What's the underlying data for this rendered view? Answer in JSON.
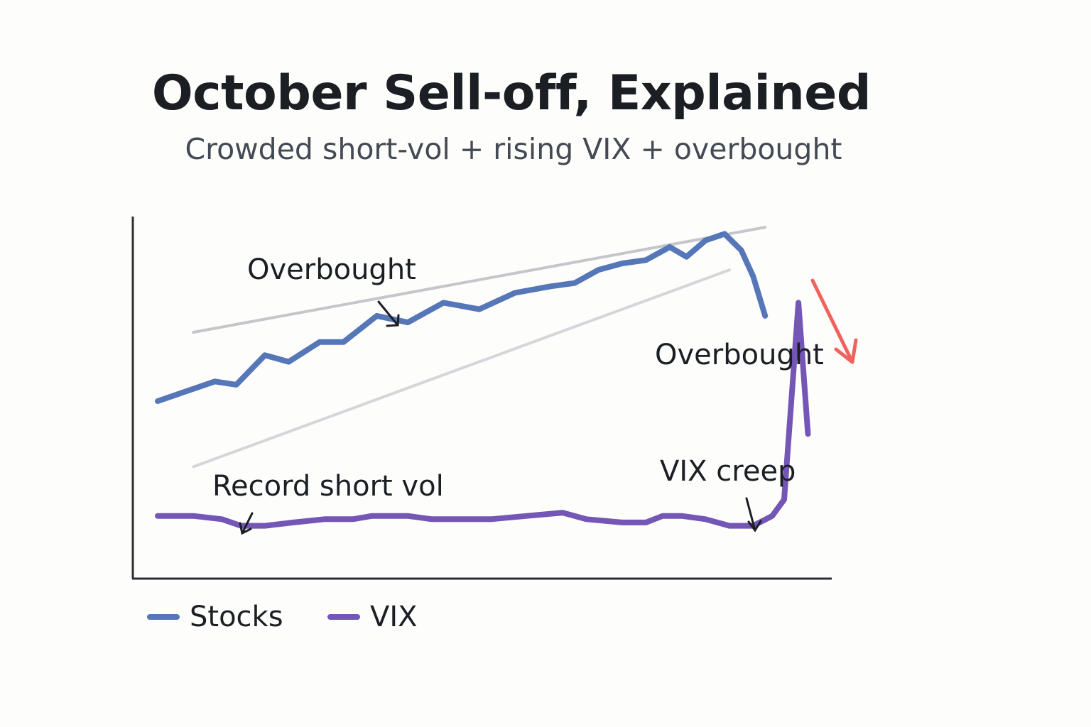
{
  "title": "October Sell-off, Explained",
  "subtitle": "Crowded short-vol + rising VIX + overbought",
  "chart_data": {
    "type": "line",
    "title": "October Sell-off, Explained",
    "subtitle": "Crowded short-vol + rising VIX + overbought",
    "xlabel": "",
    "ylabel": "",
    "x": [
      0,
      1,
      2,
      3,
      4,
      5,
      6,
      7,
      8,
      9,
      10,
      11,
      12,
      13,
      14,
      15,
      16,
      17,
      18,
      19,
      20,
      21,
      22,
      23,
      24,
      25,
      26,
      27,
      28
    ],
    "xlim": [
      0,
      28
    ],
    "ylim": [
      0,
      100
    ],
    "series": [
      {
        "name": "Stocks",
        "color": "#5577b8",
        "values": [
          50,
          53,
          56,
          55,
          64,
          62,
          68,
          68,
          76,
          74,
          80,
          78,
          83,
          85,
          86,
          90,
          92,
          93,
          97,
          94,
          99,
          101,
          96,
          88,
          76
        ],
        "x": [
          0,
          1.2,
          2.4,
          3.3,
          4.5,
          5.5,
          6.8,
          7.8,
          9.2,
          10.5,
          12,
          13.5,
          15,
          16.5,
          17.5,
          18.5,
          19.5,
          20.5,
          21.5,
          22.2,
          23,
          23.8,
          24.5,
          25,
          25.5
        ]
      },
      {
        "name": "VIX",
        "color": "#7356b5",
        "values": [
          15,
          15,
          14,
          12,
          12,
          13,
          14,
          14,
          15,
          15,
          14,
          14,
          14,
          15,
          16,
          14,
          13,
          13,
          15,
          15,
          14,
          12,
          12,
          15,
          20,
          50,
          80,
          40
        ],
        "x": [
          0,
          1.5,
          2.7,
          3.5,
          4.5,
          5.7,
          7,
          8.2,
          9,
          10.5,
          11.5,
          12.5,
          14,
          15.5,
          17,
          18,
          19.5,
          20.5,
          21.2,
          22,
          23,
          24,
          25,
          25.8,
          26.3,
          26.6,
          26.9,
          27.3
        ]
      }
    ],
    "trend_channel": {
      "upper": [
        [
          1.5,
          71
        ],
        [
          25.5,
          103
        ]
      ],
      "lower": [
        [
          1.5,
          30
        ],
        [
          24,
          90
        ]
      ]
    },
    "annotations": [
      "Overbought",
      "Overbought",
      "Record short vol",
      "VIX creep"
    ],
    "legend": "bottom-left",
    "grid": false
  },
  "annotations": {
    "overbought_top": "Overbought",
    "overbought_right": "Overbought",
    "record_short_vol": "Record short vol",
    "vix_creep": "VIX creep"
  },
  "legend": {
    "stocks_label": "Stocks",
    "vix_label": "VIX",
    "stocks_color": "#5577b8",
    "vix_color": "#7356b5"
  },
  "colors": {
    "sell_arrow": "#f0625e",
    "channel": "#c4c6ca",
    "axis": "#2b2d31"
  }
}
